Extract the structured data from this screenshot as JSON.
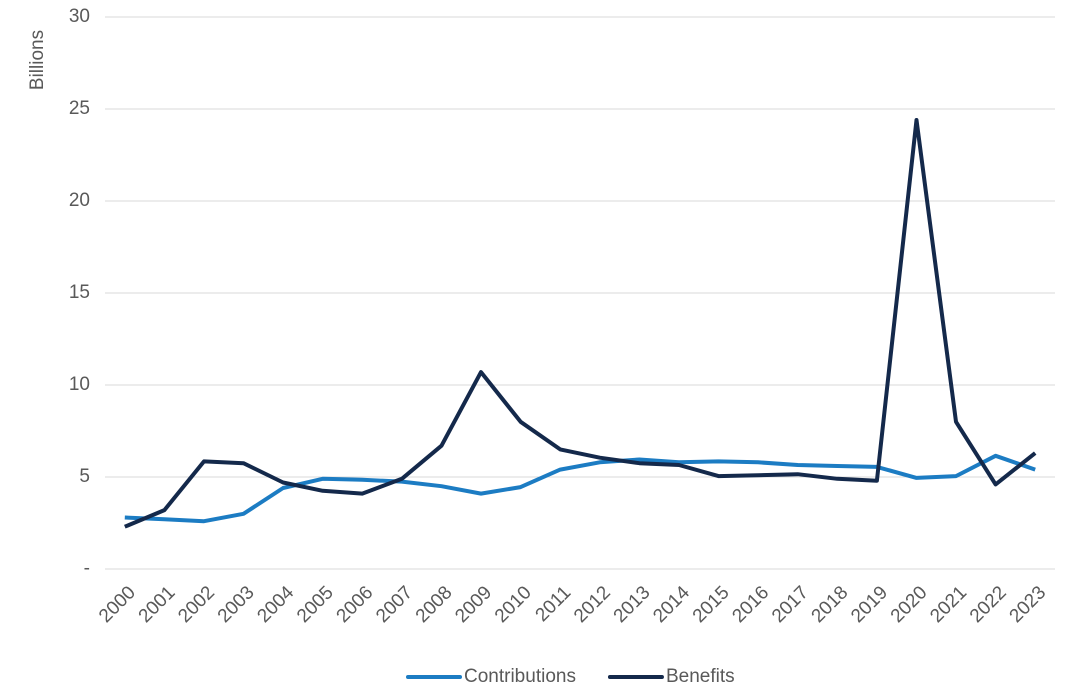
{
  "chart_data": {
    "type": "line",
    "y_label": "Billions",
    "categories": [
      "2000",
      "2001",
      "2002",
      "2003",
      "2004",
      "2005",
      "2006",
      "2007",
      "2008",
      "2009",
      "2010",
      "2011",
      "2012",
      "2013",
      "2014",
      "2015",
      "2016",
      "2017",
      "2018",
      "2019",
      "2020",
      "2021",
      "2022",
      "2023"
    ],
    "series": [
      {
        "name": "Contributions",
        "color": "#1c7cc3",
        "values": [
          2.8,
          2.7,
          2.6,
          3.0,
          4.4,
          4.9,
          4.85,
          4.75,
          4.5,
          4.1,
          4.45,
          5.4,
          5.8,
          5.95,
          5.8,
          5.85,
          5.8,
          5.65,
          5.6,
          5.55,
          4.95,
          5.05,
          6.15,
          5.4
        ]
      },
      {
        "name": "Benefits",
        "color": "#14294b",
        "values": [
          2.3,
          3.2,
          5.85,
          5.75,
          4.7,
          4.25,
          4.1,
          4.9,
          6.7,
          10.7,
          8.0,
          6.5,
          6.05,
          5.75,
          5.65,
          5.05,
          5.1,
          5.15,
          4.9,
          4.8,
          24.4,
          8.0,
          4.6,
          6.3
        ]
      }
    ],
    "ylim": [
      0,
      30
    ],
    "yticks": [
      {
        "value": 0,
        "label": "-"
      },
      5,
      10,
      15,
      20,
      25,
      30
    ],
    "grid": true,
    "legend": "bottom"
  }
}
